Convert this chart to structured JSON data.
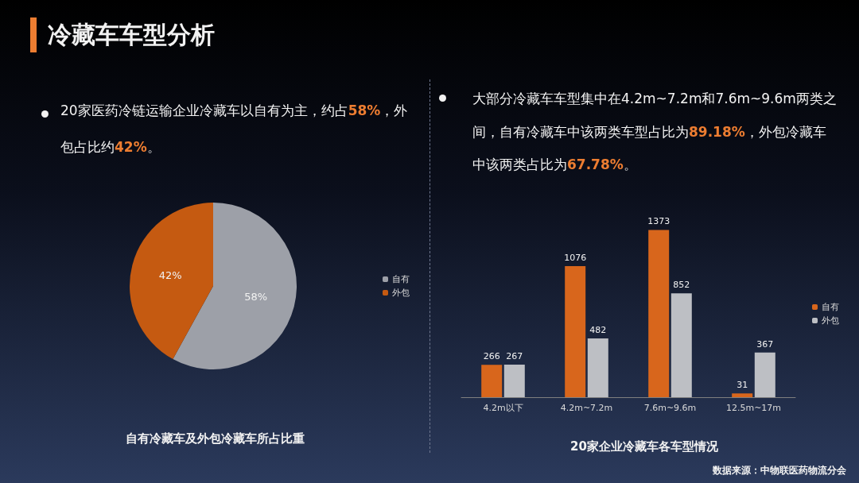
{
  "chart_data": [
    {
      "type": "pie",
      "title": "自有冷藏车及外包冷藏车所占比重",
      "annotations": [
        "冷藏车车型分析",
        "20家医药冷链运输企业冷藏车以自有为主，约占58%，外包占比约42%。"
      ],
      "categories": [
        "自有",
        "外包"
      ],
      "values": [
        58,
        42
      ],
      "colors": [
        "#9da0a8",
        "#c55a11"
      ],
      "value_labels": [
        "58%",
        "42%"
      ],
      "legend": "right"
    },
    {
      "type": "bar",
      "title": "20家企业冷藏车各车型情况",
      "annotations": [
        "大部分冷藏车车型集中在4.2m~7.2m和7.6m~9.6m两类之间，自有冷藏车中该两类车型占比为89.18%，外包冷藏车中该两类占比为67.78%。",
        "数据来源：中物联医药物流分会"
      ],
      "categories": [
        "4.2m以下",
        "4.2m~7.2m",
        "7.6m~9.6m",
        "12.5m~17m"
      ],
      "series": [
        {
          "name": "自有",
          "color": "#d8661c",
          "values": [
            266,
            1076,
            1373,
            31
          ]
        },
        {
          "name": "外包",
          "color": "#bdbfc4",
          "values": [
            267,
            482,
            852,
            367
          ]
        }
      ],
      "data_labels": true,
      "legend": "right"
    }
  ]
}
